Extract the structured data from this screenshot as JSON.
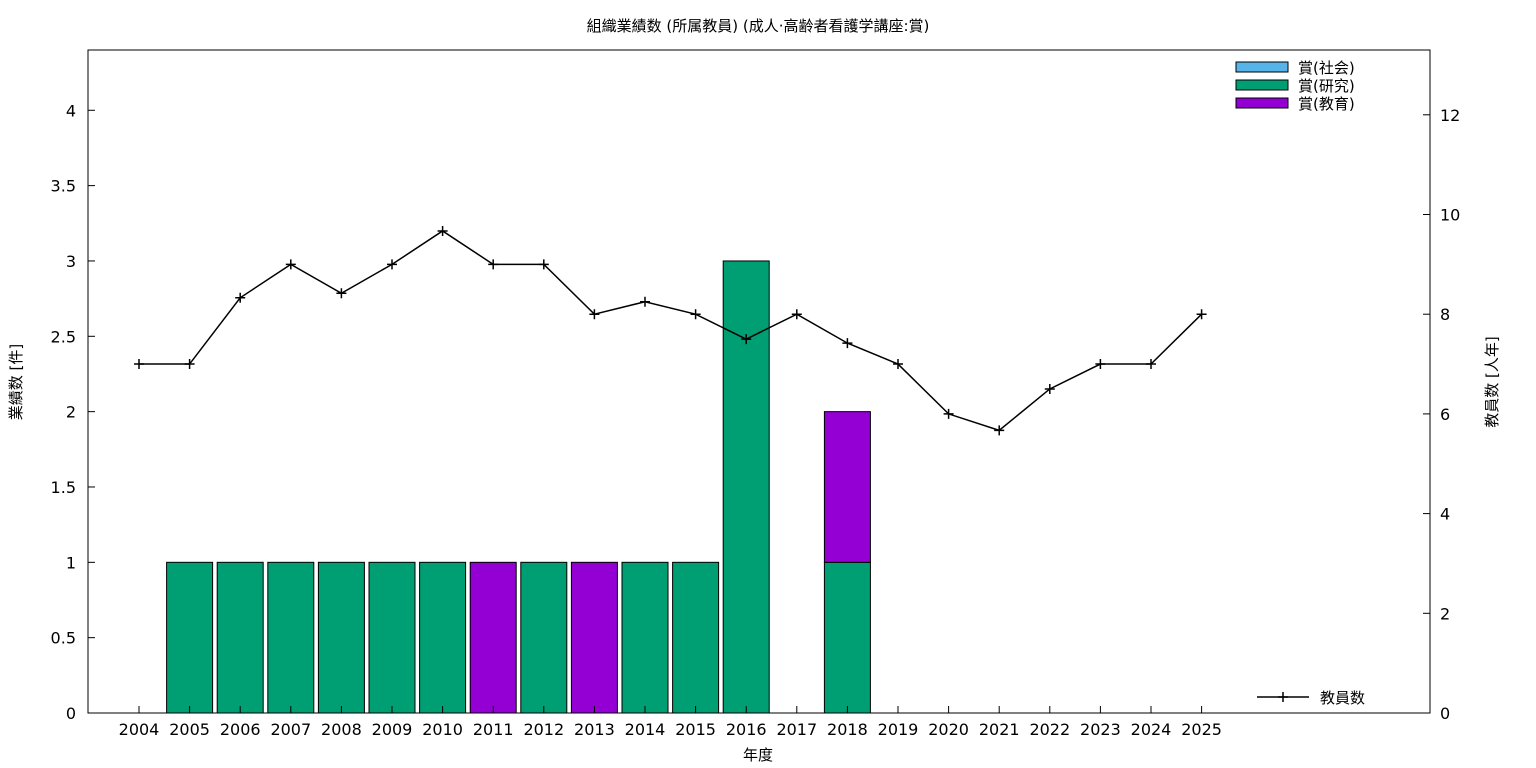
{
  "chart_data": {
    "type": "bar",
    "title": "組織業績数 (所属教員) (成人·高齢者看護学講座:賞)",
    "xlabel": "年度",
    "ylabel": "業績数 [件]",
    "y2label": "教員数 [人年]",
    "ylim": [
      0,
      4.4
    ],
    "y2lim": [
      0,
      13.3
    ],
    "yticks": [
      "0",
      "0.5",
      "1",
      "1.5",
      "2",
      "2.5",
      "3",
      "3.5",
      "4"
    ],
    "y2ticks": [
      "0",
      "2",
      "4",
      "6",
      "8",
      "10",
      "12"
    ],
    "categories": [
      "2004",
      "2005",
      "2006",
      "2007",
      "2008",
      "2009",
      "2010",
      "2011",
      "2012",
      "2013",
      "2014",
      "2015",
      "2016",
      "2017",
      "2018",
      "2019",
      "2020",
      "2021",
      "2022",
      "2023",
      "2024",
      "2025"
    ],
    "stacked": true,
    "legend_position": "top-right",
    "series": [
      {
        "name": "賞(社会)",
        "color": "#56b4e9",
        "values": [
          0,
          0,
          0,
          0,
          0,
          0,
          0,
          0,
          0,
          0,
          0,
          0,
          0,
          0,
          0,
          0,
          0,
          0,
          0,
          0,
          0,
          0
        ]
      },
      {
        "name": "賞(研究)",
        "color": "#009e73",
        "values": [
          0,
          1,
          1,
          1,
          1,
          1,
          1,
          0,
          1,
          0,
          1,
          1,
          3,
          0,
          1,
          0,
          0,
          0,
          0,
          0,
          0,
          0
        ]
      },
      {
        "name": "賞(教育)",
        "color": "#9400d3",
        "values": [
          0,
          0,
          0,
          0,
          0,
          0,
          0,
          1,
          0,
          1,
          0,
          0,
          0,
          0,
          1,
          0,
          0,
          0,
          0,
          0,
          0,
          0
        ]
      }
    ],
    "line_series": {
      "name": "教員数",
      "axis": "y2",
      "legend_position": "bottom-right",
      "color": "#000000",
      "values": [
        7,
        7,
        8.33,
        9,
        8.42,
        9,
        9.67,
        9,
        9,
        8,
        8.25,
        8,
        7.5,
        8,
        7.42,
        7,
        6,
        5.67,
        6.5,
        7,
        7,
        8
      ]
    }
  }
}
